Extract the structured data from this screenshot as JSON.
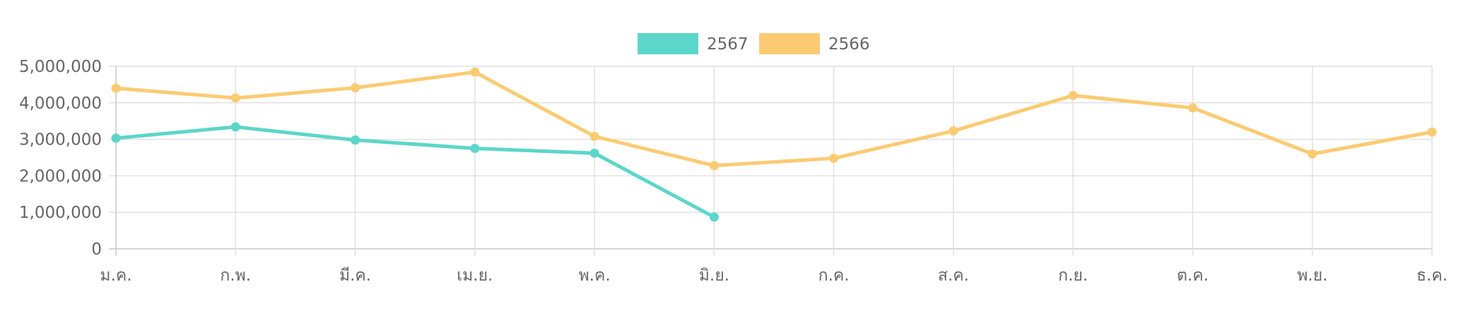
{
  "chart_data": {
    "type": "line",
    "title": "",
    "xlabel": "",
    "ylabel": "",
    "categories": [
      "ม.ค.",
      "ก.พ.",
      "มี.ค.",
      "เม.ย.",
      "พ.ค.",
      "มิ.ย.",
      "ก.ค.",
      "ส.ค.",
      "ก.ย.",
      "ต.ค.",
      "พ.ย.",
      "ธ.ค."
    ],
    "ylim": [
      0,
      5000000
    ],
    "yticks": [
      0,
      1000000,
      2000000,
      3000000,
      4000000,
      5000000
    ],
    "ytick_labels": [
      "0",
      "1,000,000",
      "2,000,000",
      "3,000,000",
      "4,000,000",
      "5,000,000"
    ],
    "grid": true,
    "legend_position": "top-center",
    "series": [
      {
        "name": "2567",
        "color": "#5CD6C8",
        "values": [
          3030000,
          3340000,
          2980000,
          2750000,
          2620000,
          870000,
          null,
          null,
          null,
          null,
          null,
          null
        ]
      },
      {
        "name": "2566",
        "color": "#FBCB73",
        "values": [
          4400000,
          4130000,
          4410000,
          4840000,
          3080000,
          2280000,
          2480000,
          3230000,
          4200000,
          3860000,
          2600000,
          3200000
        ]
      }
    ]
  }
}
